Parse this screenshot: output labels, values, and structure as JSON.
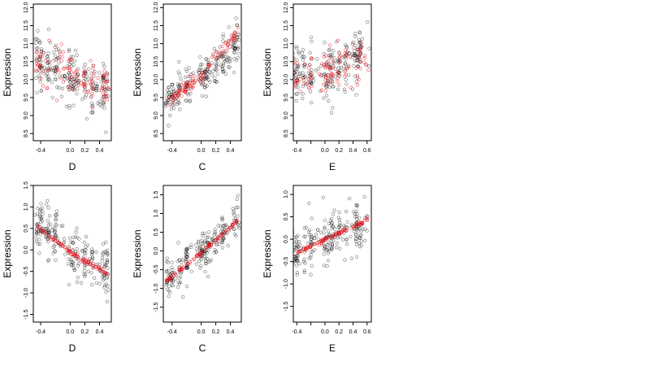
{
  "figure": {
    "title": ""
  },
  "colors": {
    "background": "#ffffff",
    "points_primary": "#000000",
    "points_secondary": "#e8000b",
    "axis": "#000000"
  },
  "chart_data": [
    {
      "type": "scatter",
      "xlabel": "D",
      "ylabel": "Expression",
      "xlim": [
        -0.5,
        0.56
      ],
      "ylim": [
        8.3,
        12.1
      ],
      "xticks": [
        -0.4,
        0.0,
        0.2,
        0.4
      ],
      "xtick_labels": [
        "-0.4",
        "0.0",
        "0.2",
        "0.4"
      ],
      "yticks": [
        8.5,
        9.0,
        9.5,
        10.0,
        10.5,
        11.0,
        11.5,
        12.0
      ],
      "ytick_labels": [
        "8.5",
        "9.0",
        "9.5",
        "10.0",
        "10.5",
        "11.0",
        "11.5",
        "12.0"
      ],
      "series": [
        {
          "color": "#000000",
          "pattern": "cloud",
          "center": [
            [
              -0.45,
              10.5
            ],
            [
              -0.2,
              10.3
            ],
            [
              0.0,
              10.0
            ],
            [
              0.2,
              9.9
            ],
            [
              0.5,
              9.8
            ]
          ],
          "spread": 0.75,
          "count": 230
        },
        {
          "color": "#e8000b",
          "pattern": "cloud",
          "center": [
            [
              -0.45,
              10.4
            ],
            [
              0.0,
              10.2
            ],
            [
              0.5,
              9.7
            ]
          ],
          "spread": 0.65,
          "count": 110
        }
      ]
    },
    {
      "type": "scatter",
      "xlabel": "C",
      "ylabel": "Expression",
      "xlim": [
        -0.52,
        0.55
      ],
      "ylim": [
        8.3,
        12.1
      ],
      "xticks": [
        -0.4,
        0.0,
        0.2,
        0.4
      ],
      "xtick_labels": [
        "-0.4",
        "0.0",
        "0.2",
        "0.4"
      ],
      "yticks": [
        8.5,
        9.0,
        9.5,
        10.0,
        10.5,
        11.0,
        11.5,
        12.0
      ],
      "ytick_labels": [
        "8.5",
        "9.0",
        "9.5",
        "10.0",
        "10.5",
        "11.0",
        "11.5",
        "12.0"
      ],
      "series": [
        {
          "color": "#000000",
          "pattern": "cloud",
          "center": [
            [
              -0.5,
              9.3
            ],
            [
              -0.2,
              9.8
            ],
            [
              0.0,
              10.1
            ],
            [
              0.3,
              10.6
            ],
            [
              0.5,
              11.1
            ]
          ],
          "spread": 0.55,
          "count": 230
        },
        {
          "color": "#e8000b",
          "pattern": "trend",
          "center": [
            [
              -0.48,
              9.4
            ],
            [
              0.0,
              10.1
            ],
            [
              0.5,
              11.3
            ]
          ],
          "spread": 0.18,
          "count": 100
        }
      ]
    },
    {
      "type": "scatter",
      "xlabel": "E",
      "ylabel": "Expression",
      "xlim": [
        -0.45,
        0.66
      ],
      "ylim": [
        8.3,
        12.1
      ],
      "xticks": [
        -0.4,
        -0.2,
        0.0,
        0.2,
        0.4,
        0.6
      ],
      "xtick_labels": [
        "-0.4",
        "",
        "0.0",
        "0.2",
        "0.4",
        "0.6"
      ],
      "yticks": [
        8.5,
        9.0,
        9.5,
        10.0,
        10.5,
        11.0,
        11.5,
        12.0
      ],
      "ytick_labels": [
        "8.5",
        "9.0",
        "9.5",
        "10.0",
        "10.5",
        "11.0",
        "11.5",
        "12.0"
      ],
      "series": [
        {
          "color": "#000000",
          "pattern": "cloud",
          "center": [
            [
              -0.4,
              10.2
            ],
            [
              0.05,
              10.2
            ],
            [
              0.45,
              10.7
            ],
            [
              0.6,
              10.8
            ]
          ],
          "spread": 0.75,
          "count": 230
        },
        {
          "color": "#e8000b",
          "pattern": "cloud",
          "center": [
            [
              -0.4,
              10.1
            ],
            [
              0.05,
              10.1
            ],
            [
              0.45,
              10.6
            ]
          ],
          "spread": 0.6,
          "count": 110
        }
      ]
    },
    {
      "type": "scatter",
      "xlabel": "D",
      "ylabel": "Expression",
      "xlim": [
        -0.5,
        0.56
      ],
      "ylim": [
        -1.68,
        1.5
      ],
      "xticks": [
        -0.4,
        0.0,
        0.2,
        0.4
      ],
      "xtick_labels": [
        "-0.4",
        "0.0",
        "0.2",
        "0.4"
      ],
      "yticks": [
        -1.5,
        -1.0,
        -0.5,
        0.0,
        0.5,
        1.0,
        1.5
      ],
      "ytick_labels": [
        "-1.5",
        "-1.0",
        "-0.5",
        "0.0",
        "0.5",
        "1.0",
        "1.5"
      ],
      "series": [
        {
          "color": "#000000",
          "pattern": "cloud",
          "center": [
            [
              -0.45,
              0.6
            ],
            [
              -0.2,
              0.3
            ],
            [
              0.0,
              0.0
            ],
            [
              0.2,
              -0.2
            ],
            [
              0.5,
              -0.5
            ]
          ],
          "spread": 0.55,
          "count": 230
        },
        {
          "color": "#e8000b",
          "pattern": "trend",
          "center": [
            [
              -0.45,
              0.55
            ],
            [
              0.0,
              -0.05
            ],
            [
              0.5,
              -0.55
            ]
          ],
          "spread": 0.05,
          "count": 90
        }
      ]
    },
    {
      "type": "scatter",
      "xlabel": "C",
      "ylabel": "Expression",
      "xlim": [
        -0.52,
        0.55
      ],
      "ylim": [
        -1.9,
        1.75
      ],
      "xticks": [
        -0.4,
        0.0,
        0.2,
        0.4
      ],
      "xtick_labels": [
        "-0.4",
        "0.0",
        "0.2",
        "0.4"
      ],
      "yticks": [
        -1.5,
        -1.0,
        -0.5,
        0.0,
        0.5,
        1.0,
        1.5
      ],
      "ytick_labels": [
        "-1.5",
        "-1.0",
        "-0.5",
        "0.0",
        "0.5",
        "1.0",
        "1.5"
      ],
      "series": [
        {
          "color": "#000000",
          "pattern": "cloud",
          "center": [
            [
              -0.5,
              -0.8
            ],
            [
              -0.2,
              -0.3
            ],
            [
              0.0,
              0.0
            ],
            [
              0.3,
              0.45
            ],
            [
              0.5,
              0.8
            ]
          ],
          "spread": 0.5,
          "count": 230
        },
        {
          "color": "#e8000b",
          "pattern": "trend",
          "center": [
            [
              -0.48,
              -0.8
            ],
            [
              0.0,
              -0.05
            ],
            [
              0.5,
              0.8
            ]
          ],
          "spread": 0.05,
          "count": 90
        }
      ]
    },
    {
      "type": "scatter",
      "xlabel": "E",
      "ylabel": "Expression",
      "xlim": [
        -0.45,
        0.66
      ],
      "ylim": [
        -1.85,
        1.2
      ],
      "xticks": [
        -0.4,
        -0.2,
        0.0,
        0.2,
        0.4,
        0.6
      ],
      "xtick_labels": [
        "-0.4",
        "",
        "0.0",
        "0.2",
        "0.4",
        "0.6"
      ],
      "yticks": [
        -1.5,
        -1.0,
        -0.5,
        0.0,
        0.5,
        1.0
      ],
      "ytick_labels": [
        "-1.5",
        "-1.0",
        "-0.5",
        "0.0",
        "0.5",
        "1.0"
      ],
      "series": [
        {
          "color": "#000000",
          "pattern": "cloud",
          "center": [
            [
              -0.4,
              -0.3
            ],
            [
              0.05,
              0.0
            ],
            [
              0.45,
              0.3
            ],
            [
              0.6,
              0.4
            ]
          ],
          "spread": 0.55,
          "count": 230
        },
        {
          "color": "#e8000b",
          "pattern": "trend",
          "center": [
            [
              -0.4,
              -0.3
            ],
            [
              0.05,
              0.02
            ],
            [
              0.62,
              0.45
            ]
          ],
          "spread": 0.04,
          "count": 90
        }
      ]
    }
  ]
}
